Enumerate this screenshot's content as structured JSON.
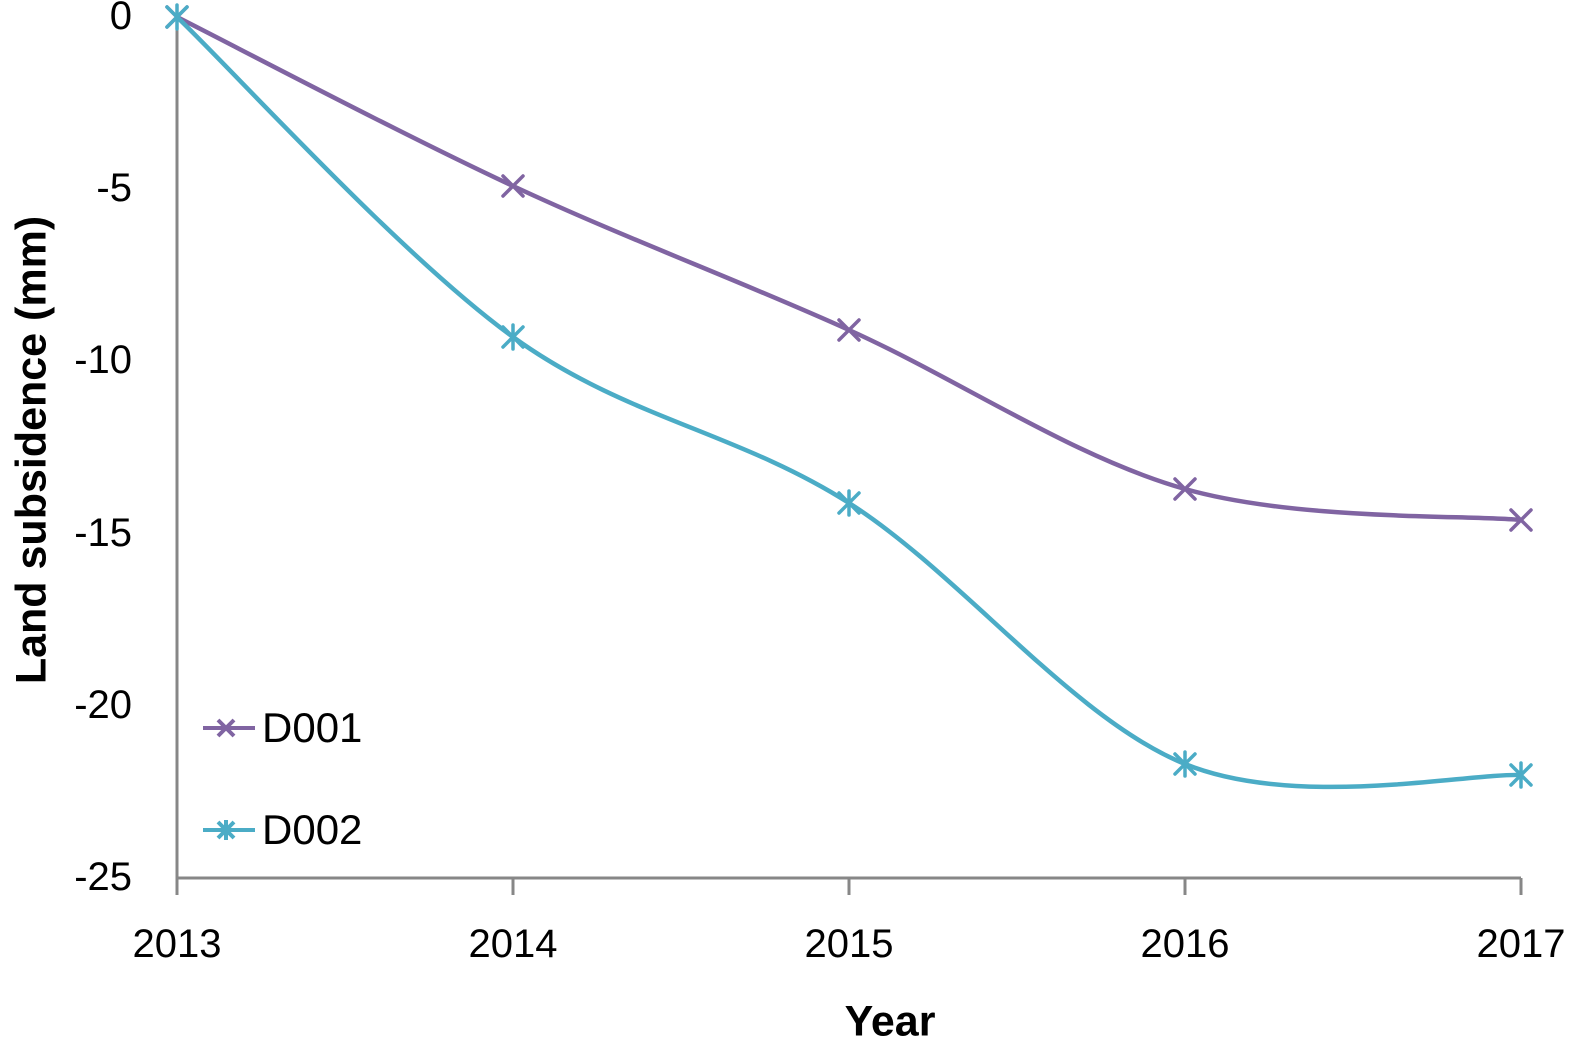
{
  "chart_data": {
    "type": "line",
    "title": "",
    "xlabel": "Year",
    "ylabel": "Land subsidence (mm)",
    "x": [
      2013,
      2014,
      2015,
      2016,
      2017
    ],
    "xlim": [
      2013,
      2017
    ],
    "ylim": [
      -25,
      0
    ],
    "x_tick_labels": [
      "2013",
      "2014",
      "2015",
      "2016",
      "2017"
    ],
    "y_tick_values": [
      0,
      -5,
      -10,
      -15,
      -20,
      -25
    ],
    "y_tick_labels": [
      "0",
      "-5",
      "-10",
      "-15",
      "-20",
      "-25"
    ],
    "grid": false,
    "line_style": "smooth",
    "legend_position": "inside-bottom-left",
    "axis_color": "#878787",
    "text_color": "#000000",
    "series": [
      {
        "name": "D001",
        "color": "#8064A2",
        "marker": "x",
        "values": [
          0,
          -4.9,
          -9.1,
          -13.7,
          -14.6
        ]
      },
      {
        "name": "D002",
        "color": "#4BACC6",
        "marker": "star",
        "values": [
          0,
          -9.3,
          -14.1,
          -21.7,
          -22.0
        ]
      }
    ]
  }
}
